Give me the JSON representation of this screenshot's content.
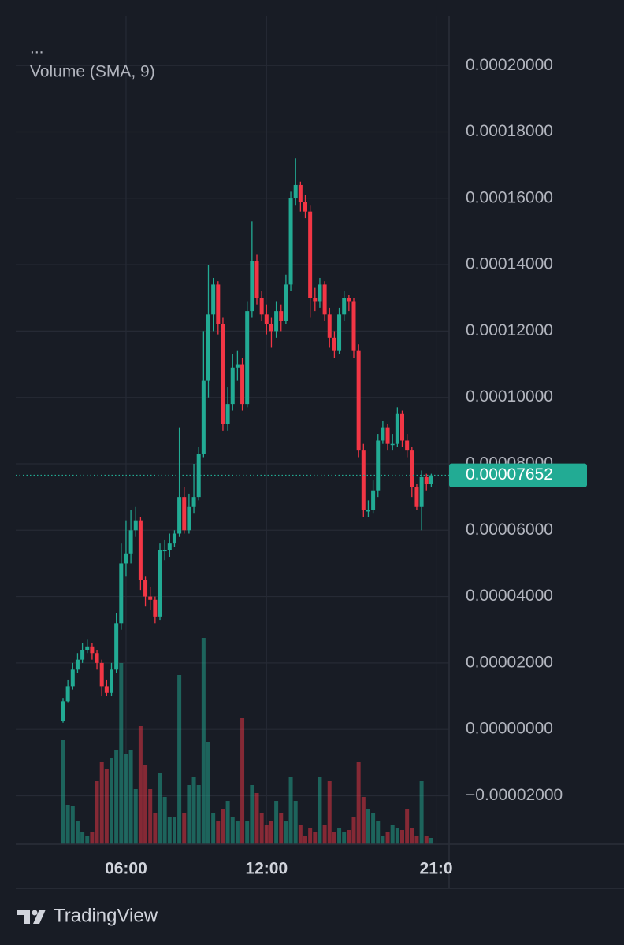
{
  "chart_data": {
    "type": "candlestick",
    "legend_dots": "...",
    "indicator": "Volume (SMA, 9)",
    "up_color": "#22ab94",
    "down_color": "#f23645",
    "categories": [
      null,
      null,
      null,
      null,
      null,
      null,
      null,
      null,
      null,
      null,
      null,
      null,
      null,
      "06:00",
      null,
      null,
      null,
      null,
      null,
      null,
      null,
      null,
      null,
      null,
      null,
      null,
      null,
      null,
      null,
      null,
      null,
      null,
      null,
      null,
      null,
      null,
      null,
      null,
      null,
      null,
      null,
      null,
      "12:00",
      null,
      null,
      null,
      null,
      null,
      null,
      null,
      null,
      null,
      null,
      null,
      null,
      null,
      null,
      null,
      null,
      null,
      null,
      null,
      null,
      null,
      null,
      null,
      null,
      null,
      null,
      null,
      null,
      null,
      null,
      null,
      null,
      null,
      null,
      "21:0"
    ],
    "open": [
      2.6e-06,
      8.5e-06,
      1.3e-05,
      1.8e-05,
      2.1e-05,
      2.4e-05,
      2.5e-05,
      2.3e-05,
      2e-05,
      1.3e-05,
      1.1e-05,
      1.8e-05,
      3.2e-05,
      5e-05,
      5.3e-05,
      6e-05,
      6.3e-05,
      4.5e-05,
      4e-05,
      3.9e-05,
      3.4e-05,
      5.4e-05,
      5.4e-05,
      5.6e-05,
      5.9e-05,
      7e-05,
      6e-05,
      6.7e-05,
      7e-05,
      8.3e-05,
      0.000105,
      0.000125,
      0.000134,
      0.000122,
      9.2e-05,
      9.8e-05,
      0.000109,
      0.00011,
      9.8e-05,
      0.000126,
      0.000141,
      0.00013,
      0.000125,
      0.000122,
      0.00012,
      0.000126,
      0.000123,
      0.000134,
      0.00016,
      0.000164,
      0.000159,
      0.000156,
      0.00013,
      0.000129,
      0.000134,
      0.000125,
      0.000118,
      0.000114,
      0.000125,
      0.00013,
      0.000129,
      0.000114,
      8.4e-05,
      6.6e-05,
      6.6e-05,
      7.2e-05,
      8.7e-05,
      9.1e-05,
      8.6e-05,
      8.6e-05,
      9.5e-05,
      8.7e-05,
      8.4e-05,
      7.3e-05,
      6.7e-05,
      7.6e-05,
      7.4e-05,
      null
    ],
    "high": [
      9.5e-06,
      1.5e-05,
      2e-05,
      2.3e-05,
      2.6e-05,
      2.7e-05,
      2.6e-05,
      2.4e-05,
      2.1e-05,
      1.5e-05,
      2e-05,
      3.5e-05,
      5.6e-05,
      6.3e-05,
      6.6e-05,
      6.7e-05,
      6.4e-05,
      4.6e-05,
      4.3e-05,
      4e-05,
      5.6e-05,
      5.7e-05,
      5.9e-05,
      6e-05,
      9.1e-05,
      7.3e-05,
      7.1e-05,
      8e-05,
      8.5e-05,
      0.00012,
      0.00014,
      0.000136,
      0.000135,
      0.000124,
      0.000103,
      0.000113,
      0.000114,
      0.000112,
      0.000129,
      0.000153,
      0.000143,
      0.000132,
      0.000128,
      0.000124,
      0.000129,
      0.000128,
      0.000137,
      0.000162,
      0.000172,
      0.000165,
      0.000161,
      0.000158,
      0.000133,
      0.000136,
      0.000135,
      0.000127,
      0.00012,
      0.000127,
      0.000132,
      0.000131,
      0.00013,
      0.000116,
      8.6e-05,
      6.9e-05,
      7.5e-05,
      8.9e-05,
      9.3e-05,
      9.2e-05,
      8.9e-05,
      9.7e-05,
      9.6e-05,
      8.9e-05,
      8.5e-05,
      7.4e-05,
      7.8e-05,
      7.7e-05,
      7.7e-05,
      null
    ],
    "low": [
      2e-06,
      8e-06,
      1.2e-05,
      1.7e-05,
      2e-05,
      2.3e-05,
      2.1e-05,
      1.8e-05,
      1e-05,
      1e-05,
      1e-05,
      1.7e-05,
      3e-05,
      4.6e-05,
      5e-05,
      5.8e-05,
      4.2e-05,
      3.7e-05,
      3.6e-05,
      3.2e-05,
      3.3e-05,
      5.1e-05,
      5.2e-05,
      5.5e-05,
      5.8e-05,
      5.9e-05,
      5.9e-05,
      6.5e-05,
      6.9e-05,
      8.2e-05,
      0.0001,
      0.00012,
      0.000119,
      9e-05,
      9e-05,
      9.6e-05,
      0.000105,
      9.6e-05,
      9.7e-05,
      0.000124,
      0.000128,
      0.000123,
      0.000119,
      0.000115,
      0.000118,
      0.00012,
      0.000122,
      0.000132,
      0.000158,
      0.000156,
      0.000154,
      0.000124,
      0.000126,
      0.000127,
      0.000123,
      0.000115,
      0.000112,
      0.000113,
      0.000123,
      0.000126,
      0.000112,
      8.2e-05,
      6.4e-05,
      6.4e-05,
      6.5e-05,
      7e-05,
      8.6e-05,
      8.4e-05,
      8.4e-05,
      8.5e-05,
      8.5e-05,
      8.2e-05,
      7e-05,
      6.6e-05,
      6e-05,
      7.2e-05,
      7.3e-05,
      null
    ],
    "close": [
      8.5e-06,
      1.3e-05,
      1.8e-05,
      2.1e-05,
      2.4e-05,
      2.5e-05,
      2.3e-05,
      2e-05,
      1.3e-05,
      1.1e-05,
      1.8e-05,
      3.2e-05,
      5e-05,
      5.3e-05,
      6e-05,
      6.3e-05,
      4.5e-05,
      4e-05,
      3.9e-05,
      3.4e-05,
      5.4e-05,
      5.4e-05,
      5.6e-05,
      5.9e-05,
      7e-05,
      6e-05,
      6.7e-05,
      7e-05,
      8.3e-05,
      0.000105,
      0.000125,
      0.000134,
      0.000122,
      9.2e-05,
      9.8e-05,
      0.000109,
      0.00011,
      9.8e-05,
      0.000126,
      0.000141,
      0.00013,
      0.000125,
      0.000122,
      0.00012,
      0.000126,
      0.000123,
      0.000134,
      0.00016,
      0.000164,
      0.000159,
      0.000156,
      0.00013,
      0.000129,
      0.000134,
      0.000125,
      0.000118,
      0.000114,
      0.000125,
      0.00013,
      0.000129,
      0.000114,
      8.4e-05,
      6.6e-05,
      6.6e-05,
      7.2e-05,
      8.7e-05,
      9.1e-05,
      8.6e-05,
      8.6e-05,
      9.5e-05,
      8.7e-05,
      8.4e-05,
      7.3e-05,
      6.7e-05,
      7.6e-05,
      7.4e-05,
      7.652e-05,
      null
    ],
    "volume": [
      132,
      50,
      48,
      30,
      15,
      10,
      15,
      80,
      105,
      95,
      110,
      120,
      230,
      115,
      120,
      70,
      150,
      100,
      70,
      40,
      90,
      60,
      35,
      35,
      215,
      40,
      75,
      85,
      75,
      262,
      130,
      40,
      30,
      45,
      55,
      35,
      30,
      160,
      30,
      75,
      65,
      40,
      25,
      30,
      55,
      40,
      30,
      85,
      55,
      25,
      10,
      20,
      15,
      85,
      25,
      80,
      15,
      20,
      15,
      18,
      35,
      105,
      60,
      45,
      40,
      30,
      10,
      15,
      25,
      20,
      18,
      45,
      20,
      10,
      80,
      10,
      8,
      null
    ],
    "last_price": 7.652e-05,
    "ylim": [
      -3.46e-05,
      0.000215
    ],
    "yticks": [
      {
        "value": 0.0002,
        "label": "0.00020000"
      },
      {
        "value": 0.00018,
        "label": "0.00018000"
      },
      {
        "value": 0.00016,
        "label": "0.00016000"
      },
      {
        "value": 0.00014,
        "label": "0.00014000"
      },
      {
        "value": 0.00012,
        "label": "0.00012000"
      },
      {
        "value": 0.0001,
        "label": "0.00010000"
      },
      {
        "value": 8e-05,
        "label": "0.00008000"
      },
      {
        "value": 6e-05,
        "label": "0.00006000"
      },
      {
        "value": 4e-05,
        "label": "0.00004000"
      },
      {
        "value": 2e-05,
        "label": "0.00002000"
      },
      {
        "value": 0,
        "label": "0.00000000"
      },
      {
        "value": -2e-05,
        "label": "−0.00002000"
      }
    ],
    "grid": true
  },
  "branding": "TradingView"
}
